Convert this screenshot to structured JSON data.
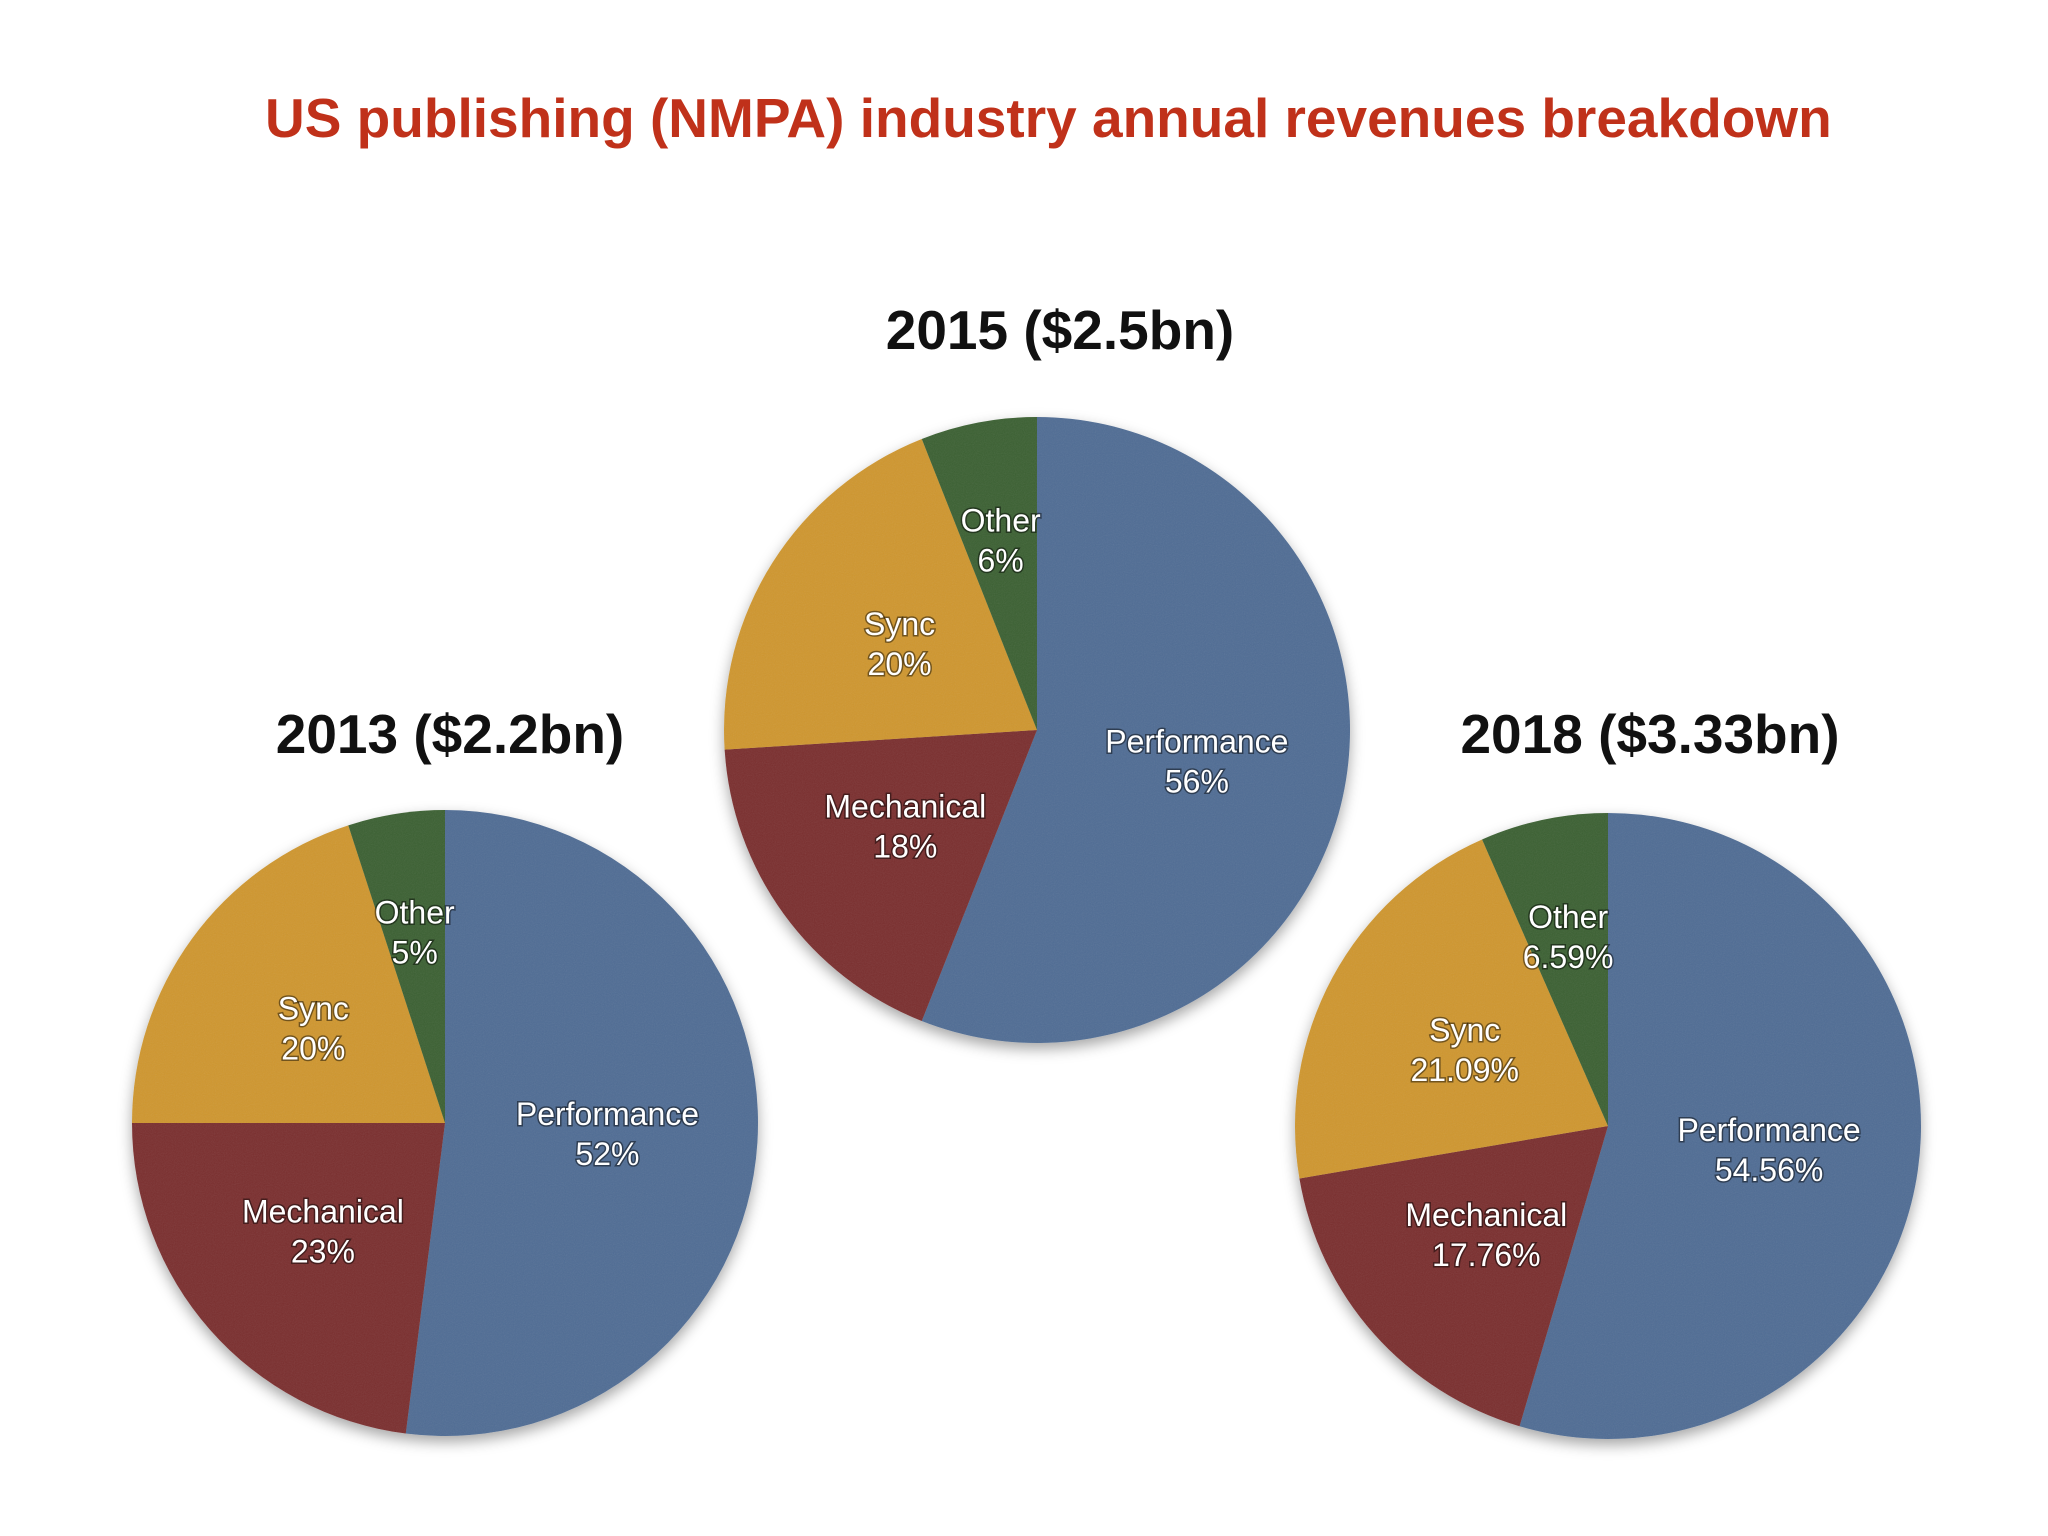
{
  "title": "US publishing (NMPA) industry annual revenues breakdown",
  "colors": {
    "Performance": "#4f6c94",
    "Mechanical": "#7a2d2e",
    "Sync": "#cf962e",
    "Other": "#3b6131"
  },
  "chart_data": [
    {
      "type": "pie",
      "title": "2013 ($2.2bn)",
      "slices": [
        {
          "label": "Performance",
          "value": 52,
          "display": "52%"
        },
        {
          "label": "Mechanical",
          "value": 23,
          "display": "23%"
        },
        {
          "label": "Sync",
          "value": 20,
          "display": "20%"
        },
        {
          "label": "Other",
          "value": 5,
          "display": "5%"
        }
      ]
    },
    {
      "type": "pie",
      "title": "2015 ($2.5bn)",
      "slices": [
        {
          "label": "Performance",
          "value": 56,
          "display": "56%"
        },
        {
          "label": "Mechanical",
          "value": 18,
          "display": "18%"
        },
        {
          "label": "Sync",
          "value": 20,
          "display": "20%"
        },
        {
          "label": "Other",
          "value": 6,
          "display": "6%"
        }
      ]
    },
    {
      "type": "pie",
      "title": "2018 ($3.33bn)",
      "slices": [
        {
          "label": "Performance",
          "value": 54.56,
          "display": "54.56%"
        },
        {
          "label": "Mechanical",
          "value": 17.76,
          "display": "17.76%"
        },
        {
          "label": "Sync",
          "value": 21.09,
          "display": "21.09%"
        },
        {
          "label": "Other",
          "value": 6.59,
          "display": "6.59%"
        }
      ]
    }
  ]
}
